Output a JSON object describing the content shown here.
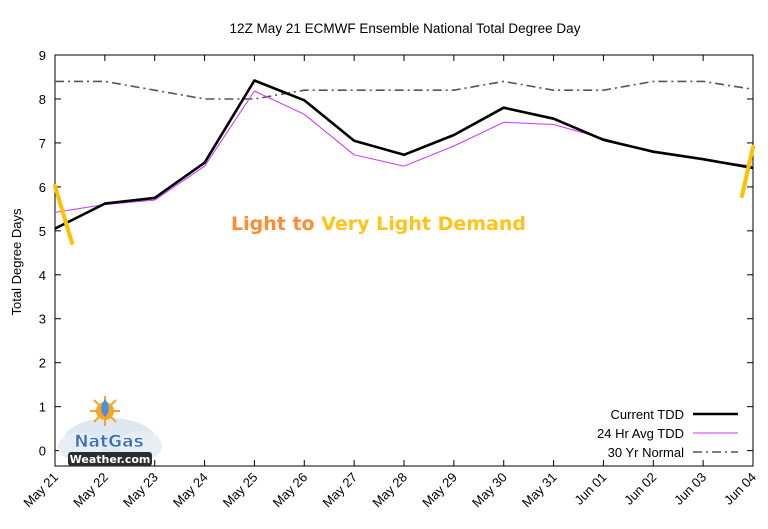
{
  "chart_data": {
    "type": "line",
    "title": "12Z May 21 ECMWF Ensemble National Total Degree Day",
    "xlabel": "",
    "ylabel": "Total Degree Days",
    "ylim": [
      -0.35,
      9
    ],
    "yticks": [
      0,
      1,
      2,
      3,
      4,
      5,
      6,
      7,
      8,
      9
    ],
    "categories": [
      "May 21",
      "May 22",
      "May 23",
      "May 24",
      "May 25",
      "May 26",
      "May 27",
      "May 28",
      "May 29",
      "May 30",
      "May 31",
      "Jun 01",
      "Jun 02",
      "Jun 03",
      "Jun 04"
    ],
    "grid": false,
    "legend_position": "bottom-right",
    "series": [
      {
        "name": "Current TDD",
        "color": "#000000",
        "style": "solid-thick",
        "values": [
          5.05,
          5.62,
          5.75,
          6.55,
          8.42,
          7.97,
          7.05,
          6.73,
          7.18,
          7.8,
          7.55,
          7.07,
          6.8,
          6.63,
          6.43
        ]
      },
      {
        "name": "24 Hr Avg TDD",
        "color": "#cc33ff",
        "style": "solid-thin",
        "values": [
          5.42,
          5.6,
          5.7,
          6.47,
          8.18,
          7.65,
          6.73,
          6.47,
          6.93,
          7.47,
          7.42,
          7.1,
          6.78,
          6.63,
          6.47
        ]
      },
      {
        "name": "30 Yr Normal",
        "color": "#555555",
        "style": "dash-dot",
        "values": [
          8.4,
          8.4,
          8.2,
          8.0,
          8.0,
          8.2,
          8.2,
          8.2,
          8.2,
          8.4,
          8.2,
          8.2,
          8.4,
          8.4,
          8.22
        ]
      }
    ],
    "annotation": {
      "part1": "Light to",
      "part2": "Very Light Demand",
      "color1": "#ff8c33",
      "color2": "#ffc41a"
    }
  },
  "logo": {
    "line1": "NatGas",
    "line2": "Weather.com"
  }
}
